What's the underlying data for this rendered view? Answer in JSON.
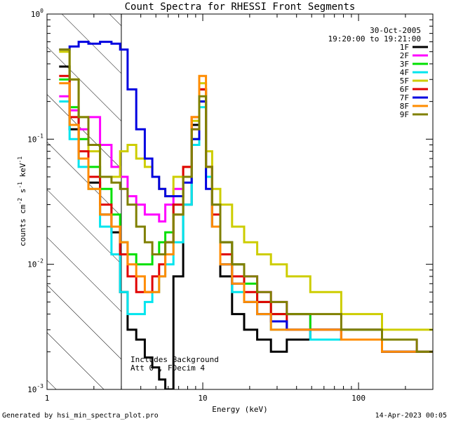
{
  "chart_data": {
    "type": "line",
    "title": "Count Spectra for RHESSI Front Segments",
    "xlabel": "Energy (keV)",
    "ylabel": "counts cm^-2 s^-1 keV^-1",
    "ylabel_parts": {
      "base": "counts cm",
      "exp1": "-2",
      "mid": " s",
      "exp2": "-1",
      "mid2": " keV",
      "exp3": "-1"
    },
    "xscale": "log",
    "yscale": "log",
    "xlim": [
      1,
      300
    ],
    "ylim": [
      0.001,
      1
    ],
    "x_ticks": [
      {
        "value": 1,
        "label": "1"
      },
      {
        "value": 10,
        "label": "10"
      },
      {
        "value": 100,
        "label": "100"
      }
    ],
    "y_ticks": [
      {
        "value": 1,
        "base": "10",
        "exp": "0"
      },
      {
        "value": 0.1,
        "base": "10",
        "exp": "-1"
      },
      {
        "value": 0.01,
        "base": "10",
        "exp": "-2"
      },
      {
        "value": 0.001,
        "base": "10",
        "exp": "-3"
      }
    ],
    "date": "30-Oct-2005",
    "time_range": "19:20:00 to 19:21:00",
    "hatched_region": {
      "x_from": 1,
      "x_to": 3
    },
    "annotations": [
      "Includes Background",
      "Att 0 , FDecim 4"
    ],
    "footer_left": "Generated by hsi_min_spectra_plot.pro",
    "footer_right": "14-Apr-2023 00:05",
    "series": [
      {
        "name": "1F",
        "color": "#000000",
        "x": [
          1.3,
          1.5,
          1.7,
          2.0,
          2.4,
          2.8,
          3.1,
          3.5,
          4.0,
          4.5,
          5.0,
          5.5,
          6.0,
          7.0,
          8.0,
          9.0,
          10.0,
          11.0,
          12.0,
          14.0,
          17.0,
          20.0,
          25.0,
          30.0,
          40.0,
          60.0,
          100.0,
          200.0,
          280.0
        ],
        "y": [
          0.38,
          0.12,
          0.07,
          0.045,
          0.025,
          0.018,
          0.006,
          0.003,
          0.0025,
          0.0018,
          0.0015,
          0.0012,
          0.001,
          0.008,
          0.03,
          0.13,
          0.25,
          0.06,
          0.02,
          0.008,
          0.004,
          0.003,
          0.0025,
          0.002,
          0.0025,
          0.003,
          0.003,
          0.002,
          0.002
        ]
      },
      {
        "name": "2F",
        "color": "#ff00ff",
        "x": [
          1.3,
          1.5,
          1.7,
          2.0,
          2.4,
          2.8,
          3.1,
          3.5,
          4.0,
          4.5,
          5.0,
          5.5,
          6.0,
          7.0,
          8.0,
          9.0,
          10.0,
          11.0,
          12.0,
          14.0,
          17.0,
          20.0,
          25.0,
          30.0,
          40.0,
          60.0,
          100.0,
          200.0,
          280.0
        ],
        "y": [
          0.22,
          0.17,
          0.12,
          0.15,
          0.09,
          0.06,
          0.05,
          0.035,
          0.03,
          0.025,
          0.025,
          0.022,
          0.03,
          0.04,
          0.05,
          0.12,
          0.2,
          0.06,
          0.03,
          0.015,
          0.01,
          0.008,
          0.006,
          0.005,
          0.004,
          0.003,
          0.003,
          0.0025,
          0.002
        ]
      },
      {
        "name": "3F",
        "color": "#00e000",
        "x": [
          1.3,
          1.5,
          1.7,
          2.0,
          2.4,
          2.8,
          3.1,
          3.5,
          4.0,
          4.5,
          5.0,
          5.5,
          6.0,
          7.0,
          8.0,
          9.0,
          10.0,
          11.0,
          12.0,
          14.0,
          17.0,
          20.0,
          25.0,
          30.0,
          40.0,
          60.0,
          100.0,
          200.0,
          280.0
        ],
        "y": [
          0.3,
          0.18,
          0.1,
          0.06,
          0.04,
          0.025,
          0.015,
          0.012,
          0.01,
          0.01,
          0.012,
          0.015,
          0.018,
          0.03,
          0.05,
          0.1,
          0.2,
          0.05,
          0.03,
          0.015,
          0.01,
          0.007,
          0.005,
          0.004,
          0.004,
          0.003,
          0.003,
          0.002,
          0.002
        ]
      },
      {
        "name": "4F",
        "color": "#00e5ee",
        "x": [
          1.3,
          1.5,
          1.7,
          2.0,
          2.4,
          2.8,
          3.1,
          3.5,
          4.0,
          4.5,
          5.0,
          5.5,
          6.0,
          7.0,
          8.0,
          9.0,
          10.0,
          11.0,
          12.0,
          14.0,
          17.0,
          20.0,
          25.0,
          30.0,
          40.0,
          60.0,
          100.0,
          200.0,
          280.0
        ],
        "y": [
          0.2,
          0.1,
          0.06,
          0.04,
          0.02,
          0.012,
          0.006,
          0.004,
          0.004,
          0.005,
          0.006,
          0.008,
          0.01,
          0.015,
          0.03,
          0.09,
          0.18,
          0.05,
          0.02,
          0.01,
          0.006,
          0.005,
          0.004,
          0.003,
          0.003,
          0.0025,
          0.0025,
          0.002,
          0.002
        ]
      },
      {
        "name": "5F",
        "color": "#cdcd00",
        "x": [
          1.3,
          1.5,
          1.7,
          2.0,
          2.4,
          2.8,
          3.1,
          3.5,
          4.0,
          4.5,
          5.0,
          5.5,
          6.0,
          7.0,
          8.0,
          9.0,
          10.0,
          11.0,
          12.0,
          14.0,
          17.0,
          20.0,
          25.0,
          30.0,
          40.0,
          60.0,
          100.0,
          200.0,
          280.0
        ],
        "y": [
          0.5,
          0.3,
          0.15,
          0.08,
          0.05,
          0.05,
          0.08,
          0.09,
          0.07,
          0.06,
          0.05,
          0.04,
          0.035,
          0.05,
          0.06,
          0.14,
          0.28,
          0.08,
          0.04,
          0.03,
          0.02,
          0.015,
          0.012,
          0.01,
          0.008,
          0.006,
          0.004,
          0.003,
          0.003
        ]
      },
      {
        "name": "6F",
        "color": "#e00000",
        "x": [
          1.3,
          1.5,
          1.7,
          2.0,
          2.4,
          2.8,
          3.1,
          3.5,
          4.0,
          4.5,
          5.0,
          5.5,
          6.0,
          7.0,
          8.0,
          9.0,
          10.0,
          11.0,
          12.0,
          14.0,
          17.0,
          20.0,
          25.0,
          30.0,
          40.0,
          60.0,
          100.0,
          200.0,
          280.0
        ],
        "y": [
          0.32,
          0.15,
          0.08,
          0.05,
          0.03,
          0.02,
          0.012,
          0.008,
          0.006,
          0.006,
          0.008,
          0.01,
          0.015,
          0.03,
          0.06,
          0.15,
          0.25,
          0.06,
          0.025,
          0.012,
          0.008,
          0.006,
          0.005,
          0.004,
          0.003,
          0.003,
          0.0025,
          0.002,
          0.002
        ]
      },
      {
        "name": "7F",
        "color": "#0000e0",
        "x": [
          1.3,
          1.5,
          1.7,
          2.0,
          2.4,
          2.8,
          3.1,
          3.5,
          4.0,
          4.5,
          5.0,
          5.5,
          6.0,
          7.0,
          8.0,
          9.0,
          10.0,
          11.0,
          12.0,
          14.0,
          17.0,
          20.0,
          25.0,
          30.0,
          40.0,
          60.0,
          100.0,
          200.0,
          280.0
        ],
        "y": [
          0.52,
          0.55,
          0.6,
          0.58,
          0.6,
          0.58,
          0.52,
          0.25,
          0.12,
          0.07,
          0.05,
          0.04,
          0.035,
          0.035,
          0.045,
          0.1,
          0.2,
          0.04,
          0.02,
          0.01,
          0.007,
          0.005,
          0.004,
          0.0035,
          0.003,
          0.003,
          0.0025,
          0.002,
          0.002
        ]
      },
      {
        "name": "8F",
        "color": "#ff8c00",
        "x": [
          1.3,
          1.5,
          1.7,
          2.0,
          2.4,
          2.8,
          3.1,
          3.5,
          4.0,
          4.5,
          5.0,
          5.5,
          6.0,
          7.0,
          8.0,
          9.0,
          10.0,
          11.0,
          12.0,
          14.0,
          17.0,
          20.0,
          25.0,
          30.0,
          40.0,
          60.0,
          100.0,
          200.0,
          280.0
        ],
        "y": [
          0.28,
          0.13,
          0.07,
          0.04,
          0.025,
          0.02,
          0.015,
          0.01,
          0.008,
          0.006,
          0.006,
          0.008,
          0.012,
          0.025,
          0.05,
          0.15,
          0.32,
          0.06,
          0.02,
          0.01,
          0.007,
          0.005,
          0.004,
          0.003,
          0.003,
          0.003,
          0.0025,
          0.002,
          0.002
        ]
      },
      {
        "name": "9F",
        "color": "#808000",
        "x": [
          1.3,
          1.5,
          1.7,
          2.0,
          2.4,
          2.8,
          3.1,
          3.5,
          4.0,
          4.5,
          5.0,
          5.5,
          6.0,
          7.0,
          8.0,
          9.0,
          10.0,
          11.0,
          12.0,
          14.0,
          17.0,
          20.0,
          25.0,
          30.0,
          40.0,
          60.0,
          100.0,
          200.0,
          280.0
        ],
        "y": [
          0.52,
          0.3,
          0.15,
          0.09,
          0.05,
          0.045,
          0.04,
          0.03,
          0.02,
          0.015,
          0.012,
          0.012,
          0.015,
          0.025,
          0.05,
          0.12,
          0.22,
          0.06,
          0.03,
          0.015,
          0.01,
          0.008,
          0.006,
          0.005,
          0.004,
          0.004,
          0.003,
          0.0025,
          0.002
        ]
      }
    ]
  }
}
